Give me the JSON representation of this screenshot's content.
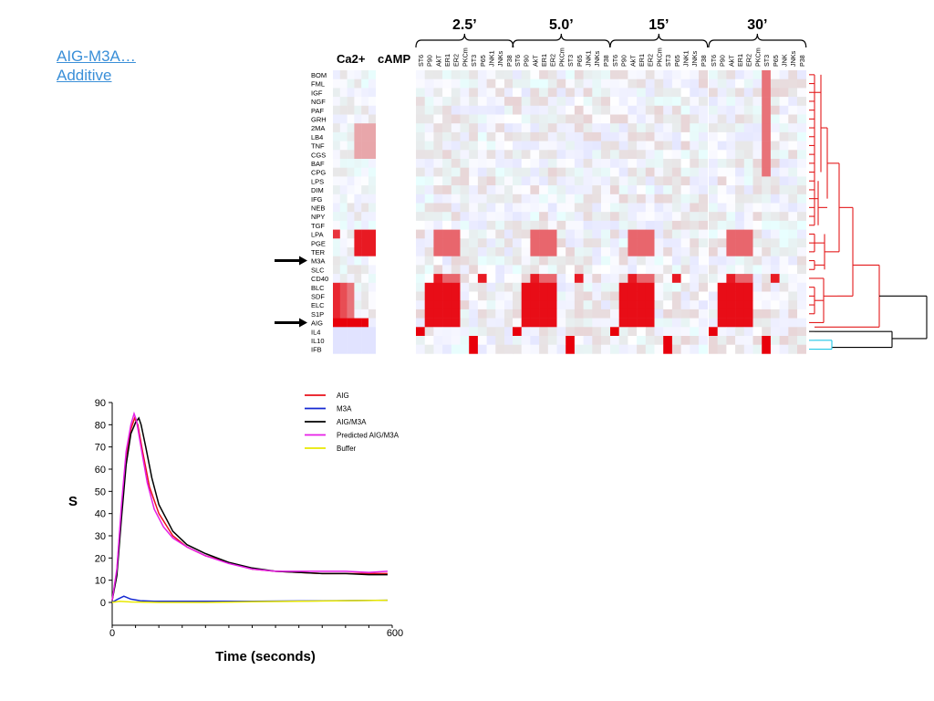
{
  "links": {
    "line1": "AIG-M3A…",
    "line2": "Additive"
  },
  "heatmap": {
    "type": "heatmap",
    "group_headers": [
      "Ca2+",
      "cAMP"
    ],
    "time_groups": [
      "2.5’",
      "5.0’",
      "15’",
      "30’"
    ],
    "column_sets": [
      [
        "ST6",
        "P90",
        "AkT",
        "ER1",
        "ER2",
        "PKCm",
        "ST3",
        "P65",
        "JNK1",
        "JNKs",
        "P38"
      ],
      [
        "ST6",
        "P90",
        "AkT",
        "ER1",
        "ER2",
        "PKCm",
        "ST3",
        "P65",
        "JNK1",
        "JNKs",
        "P38"
      ],
      [
        "ST6",
        "P90",
        "AkT",
        "ER1",
        "ER2",
        "PKCm",
        "ST3",
        "P65",
        "JNK1",
        "JNKs",
        "P38"
      ],
      [
        "ST6",
        "P90",
        "AkT",
        "ER1",
        "ER2",
        "PKCm",
        "ST3",
        "P65",
        "JNK",
        "JNKs",
        "P38"
      ]
    ],
    "row_labels": [
      "BOM",
      "FML",
      "IGF",
      "NGF",
      "PAF",
      "GRH",
      "2MA",
      "LB4",
      "TNF",
      "CGS",
      "BAF",
      "CPG",
      "LPS",
      "DIM",
      "IFG",
      "NEB",
      "NPY",
      "TGF",
      "LPA",
      "PGE",
      "TER",
      "M3A",
      "SLC",
      "CD40",
      "BLC",
      "SDF",
      "ELC",
      "S1P",
      "AIG",
      "IL4",
      "IL10",
      "IFB"
    ],
    "highlighted_rows": [
      "M3A",
      "AIG"
    ],
    "colors": {
      "positive": "#e8000b",
      "negative": "#3b4bc8",
      "neutral": "#ffffff",
      "dendrogram_main": "#e31a1c",
      "dendrogram_outer": "#000000",
      "dendrogram_cyan": "#22c6e6"
    }
  },
  "chart_data": {
    "type": "line",
    "xlabel": "Time (seconds)",
    "ylabel": "S",
    "xlim": [
      0,
      600
    ],
    "ylim": [
      0,
      90
    ],
    "x_ticks": [
      "0",
      "600"
    ],
    "y_ticks": [
      "0",
      "10",
      "20",
      "30",
      "40",
      "50",
      "60",
      "70",
      "80",
      "90"
    ],
    "legend_position": "top-right",
    "series": [
      {
        "name": "AIG",
        "color": "#e8101a",
        "points": [
          [
            0,
            1
          ],
          [
            10,
            14
          ],
          [
            20,
            42
          ],
          [
            30,
            66
          ],
          [
            40,
            78
          ],
          [
            48,
            83
          ],
          [
            55,
            80
          ],
          [
            65,
            68
          ],
          [
            80,
            52
          ],
          [
            100,
            40
          ],
          [
            130,
            30
          ],
          [
            160,
            25
          ],
          [
            200,
            21
          ],
          [
            250,
            18
          ],
          [
            300,
            15
          ],
          [
            350,
            14
          ],
          [
            400,
            13.5
          ],
          [
            450,
            13
          ],
          [
            500,
            13
          ],
          [
            550,
            13
          ],
          [
            590,
            13
          ]
        ]
      },
      {
        "name": "M3A",
        "color": "#1428d2",
        "points": [
          [
            0,
            0
          ],
          [
            12,
            1.5
          ],
          [
            25,
            2.8
          ],
          [
            40,
            1.5
          ],
          [
            60,
            0.8
          ],
          [
            90,
            0.5
          ],
          [
            150,
            0.5
          ],
          [
            300,
            0.5
          ],
          [
            450,
            0.7
          ],
          [
            590,
            1
          ]
        ]
      },
      {
        "name": "AIG/M3A",
        "color": "#000000",
        "points": [
          [
            0,
            1
          ],
          [
            10,
            12
          ],
          [
            20,
            38
          ],
          [
            30,
            62
          ],
          [
            40,
            76
          ],
          [
            50,
            81
          ],
          [
            57,
            83
          ],
          [
            62,
            80
          ],
          [
            72,
            70
          ],
          [
            85,
            56
          ],
          [
            100,
            44
          ],
          [
            130,
            32
          ],
          [
            160,
            26
          ],
          [
            200,
            22
          ],
          [
            250,
            18
          ],
          [
            300,
            15.5
          ],
          [
            350,
            14
          ],
          [
            400,
            13.5
          ],
          [
            450,
            13
          ],
          [
            500,
            13
          ],
          [
            550,
            12.5
          ],
          [
            590,
            12.5
          ]
        ]
      },
      {
        "name": "Predicted AIG/M3A",
        "color": "#e61ee6",
        "points": [
          [
            0,
            1
          ],
          [
            10,
            15
          ],
          [
            20,
            44
          ],
          [
            30,
            68
          ],
          [
            40,
            80
          ],
          [
            47,
            85
          ],
          [
            52,
            82
          ],
          [
            60,
            72
          ],
          [
            75,
            54
          ],
          [
            90,
            42
          ],
          [
            110,
            34
          ],
          [
            130,
            29
          ],
          [
            160,
            25
          ],
          [
            200,
            21
          ],
          [
            250,
            17.5
          ],
          [
            300,
            15
          ],
          [
            350,
            14
          ],
          [
            400,
            14
          ],
          [
            450,
            14
          ],
          [
            500,
            14
          ],
          [
            550,
            13.5
          ],
          [
            590,
            14
          ]
        ]
      },
      {
        "name": "Buffer",
        "color": "#e8e800",
        "points": [
          [
            0,
            0
          ],
          [
            15,
            0.5
          ],
          [
            40,
            0.2
          ],
          [
            100,
            0
          ],
          [
            200,
            0
          ],
          [
            300,
            0.3
          ],
          [
            400,
            0.5
          ],
          [
            500,
            0.8
          ],
          [
            590,
            1
          ]
        ]
      }
    ]
  }
}
